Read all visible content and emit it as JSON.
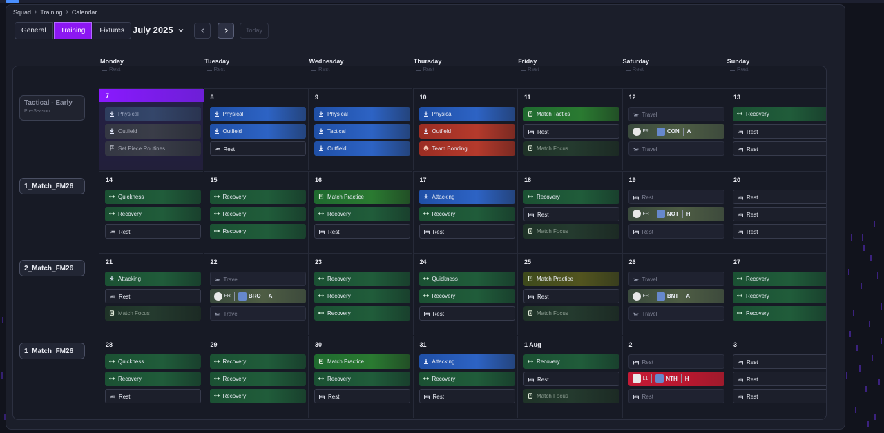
{
  "breadcrumb": [
    "Squad",
    "Training",
    "Calendar"
  ],
  "tabs": [
    "General",
    "Training",
    "Fixtures"
  ],
  "active_tab": "Training",
  "month_label": "July 2025",
  "today_label": "Today",
  "days": [
    "Monday",
    "Tuesday",
    "Wednesday",
    "Thursday",
    "Friday",
    "Saturday",
    "Sunday"
  ],
  "ghost_label": "Rest",
  "weeks": [
    {
      "label": "Tactical - Early",
      "sublabel": "Pre-Season",
      "cells": [
        {
          "day": "7",
          "highlight": true,
          "events": [
            {
              "type": "dimblue",
              "icon": "dumbbell-icon",
              "text": "Physical"
            },
            {
              "type": "grey",
              "icon": "dumbbell-icon",
              "text": "Outfield"
            },
            {
              "type": "grey",
              "icon": "set-piece-icon",
              "text": "Set Piece Routines"
            }
          ]
        },
        {
          "day": "8",
          "events": [
            {
              "type": "blue",
              "icon": "dumbbell-icon",
              "text": "Physical"
            },
            {
              "type": "blue",
              "icon": "dumbbell-icon",
              "text": "Outfield"
            },
            {
              "type": "rest",
              "icon": "bed-icon",
              "text": "Rest"
            }
          ]
        },
        {
          "day": "9",
          "events": [
            {
              "type": "blue",
              "icon": "dumbbell-icon",
              "text": "Physical"
            },
            {
              "type": "blue",
              "icon": "dumbbell-icon",
              "text": "Tactical"
            },
            {
              "type": "blue",
              "icon": "dumbbell-icon",
              "text": "Outfield"
            }
          ]
        },
        {
          "day": "10",
          "events": [
            {
              "type": "blue",
              "icon": "dumbbell-icon",
              "text": "Physical"
            },
            {
              "type": "red",
              "icon": "dumbbell-icon",
              "text": "Outfield"
            },
            {
              "type": "red",
              "icon": "smile-icon",
              "text": "Team Bonding"
            }
          ]
        },
        {
          "day": "11",
          "events": [
            {
              "type": "green-b",
              "icon": "clipboard-icon",
              "text": "Match Tactics"
            },
            {
              "type": "rest",
              "icon": "bed-icon",
              "text": "Rest"
            },
            {
              "type": "dimgreen",
              "icon": "clipboard-icon",
              "text": "Match Focus"
            }
          ]
        },
        {
          "day": "12",
          "events": [
            {
              "type": "dim",
              "icon": "plane-icon",
              "text": "Travel"
            },
            {
              "type": "match",
              "comp": "FR",
              "team": "CON",
              "venue": "A"
            },
            {
              "type": "dim",
              "icon": "plane-icon",
              "text": "Travel"
            }
          ]
        },
        {
          "day": "13",
          "events": [
            {
              "type": "green",
              "icon": "recovery-icon",
              "text": "Recovery"
            },
            {
              "type": "rest",
              "icon": "bed-icon",
              "text": "Rest"
            },
            {
              "type": "rest",
              "icon": "bed-icon",
              "text": "Rest"
            }
          ]
        }
      ]
    },
    {
      "label": "1_Match_FM26",
      "cells": [
        {
          "day": "14",
          "events": [
            {
              "type": "green",
              "icon": "recovery-icon",
              "text": "Quickness"
            },
            {
              "type": "green",
              "icon": "recovery-icon",
              "text": "Recovery"
            },
            {
              "type": "rest",
              "icon": "bed-icon",
              "text": "Rest"
            }
          ]
        },
        {
          "day": "15",
          "events": [
            {
              "type": "green",
              "icon": "recovery-icon",
              "text": "Recovery"
            },
            {
              "type": "green",
              "icon": "recovery-icon",
              "text": "Recovery"
            },
            {
              "type": "green",
              "icon": "recovery-icon",
              "text": "Recovery"
            }
          ]
        },
        {
          "day": "16",
          "events": [
            {
              "type": "green-b",
              "icon": "clipboard-icon",
              "text": "Match Practice"
            },
            {
              "type": "green",
              "icon": "recovery-icon",
              "text": "Recovery"
            },
            {
              "type": "rest",
              "icon": "bed-icon",
              "text": "Rest"
            }
          ]
        },
        {
          "day": "17",
          "events": [
            {
              "type": "blue",
              "icon": "dumbbell-icon",
              "text": "Attacking"
            },
            {
              "type": "green",
              "icon": "recovery-icon",
              "text": "Recovery"
            },
            {
              "type": "rest",
              "icon": "bed-icon",
              "text": "Rest"
            }
          ]
        },
        {
          "day": "18",
          "events": [
            {
              "type": "green",
              "icon": "recovery-icon",
              "text": "Recovery"
            },
            {
              "type": "rest",
              "icon": "bed-icon",
              "text": "Rest"
            },
            {
              "type": "dimgreen",
              "icon": "clipboard-icon",
              "text": "Match Focus"
            }
          ]
        },
        {
          "day": "19",
          "events": [
            {
              "type": "dim",
              "icon": "bed-icon",
              "text": "Rest"
            },
            {
              "type": "match",
              "comp": "FR",
              "team": "NOT",
              "venue": "H"
            },
            {
              "type": "dim",
              "icon": "bed-icon",
              "text": "Rest"
            }
          ]
        },
        {
          "day": "20",
          "events": [
            {
              "type": "rest",
              "icon": "bed-icon",
              "text": "Rest"
            },
            {
              "type": "rest",
              "icon": "bed-icon",
              "text": "Rest"
            },
            {
              "type": "rest",
              "icon": "bed-icon",
              "text": "Rest"
            }
          ]
        }
      ]
    },
    {
      "label": "2_Match_FM26",
      "cells": [
        {
          "day": "21",
          "events": [
            {
              "type": "green",
              "icon": "dumbbell-icon",
              "text": "Attacking"
            },
            {
              "type": "rest",
              "icon": "bed-icon",
              "text": "Rest"
            },
            {
              "type": "dimgreen",
              "icon": "clipboard-icon",
              "text": "Match Focus"
            }
          ]
        },
        {
          "day": "22",
          "events": [
            {
              "type": "dim",
              "icon": "plane-icon",
              "text": "Travel"
            },
            {
              "type": "match",
              "comp": "FR",
              "team": "BRO",
              "venue": "A"
            },
            {
              "type": "dim",
              "icon": "plane-icon",
              "text": "Travel"
            }
          ]
        },
        {
          "day": "23",
          "events": [
            {
              "type": "green",
              "icon": "recovery-icon",
              "text": "Recovery"
            },
            {
              "type": "green",
              "icon": "recovery-icon",
              "text": "Recovery"
            },
            {
              "type": "green",
              "icon": "recovery-icon",
              "text": "Recovery"
            }
          ]
        },
        {
          "day": "24",
          "events": [
            {
              "type": "green",
              "icon": "recovery-icon",
              "text": "Quickness"
            },
            {
              "type": "green",
              "icon": "recovery-icon",
              "text": "Recovery"
            },
            {
              "type": "rest",
              "icon": "bed-icon",
              "text": "Rest"
            }
          ]
        },
        {
          "day": "25",
          "events": [
            {
              "type": "olive",
              "icon": "clipboard-icon",
              "text": "Match Practice"
            },
            {
              "type": "rest",
              "icon": "bed-icon",
              "text": "Rest"
            },
            {
              "type": "dimgreen",
              "icon": "clipboard-icon",
              "text": "Match Focus"
            }
          ]
        },
        {
          "day": "26",
          "events": [
            {
              "type": "dim",
              "icon": "plane-icon",
              "text": "Travel"
            },
            {
              "type": "match",
              "comp": "FR",
              "team": "BNT",
              "venue": "A"
            },
            {
              "type": "dim",
              "icon": "plane-icon",
              "text": "Travel"
            }
          ]
        },
        {
          "day": "27",
          "events": [
            {
              "type": "green",
              "icon": "recovery-icon",
              "text": "Recovery"
            },
            {
              "type": "green",
              "icon": "recovery-icon",
              "text": "Recovery"
            },
            {
              "type": "green",
              "icon": "recovery-icon",
              "text": "Recovery"
            }
          ]
        }
      ]
    },
    {
      "label": "1_Match_FM26",
      "cells": [
        {
          "day": "28",
          "events": [
            {
              "type": "green",
              "icon": "recovery-icon",
              "text": "Quickness"
            },
            {
              "type": "green",
              "icon": "recovery-icon",
              "text": "Recovery"
            },
            {
              "type": "rest",
              "icon": "bed-icon",
              "text": "Rest"
            }
          ]
        },
        {
          "day": "29",
          "events": [
            {
              "type": "green",
              "icon": "recovery-icon",
              "text": "Recovery"
            },
            {
              "type": "green",
              "icon": "recovery-icon",
              "text": "Recovery"
            },
            {
              "type": "green",
              "icon": "recovery-icon",
              "text": "Recovery"
            }
          ]
        },
        {
          "day": "30",
          "events": [
            {
              "type": "green-b",
              "icon": "clipboard-icon",
              "text": "Match Practice"
            },
            {
              "type": "green",
              "icon": "recovery-icon",
              "text": "Recovery"
            },
            {
              "type": "rest",
              "icon": "bed-icon",
              "text": "Rest"
            }
          ]
        },
        {
          "day": "31",
          "events": [
            {
              "type": "blue",
              "icon": "dumbbell-icon",
              "text": "Attacking"
            },
            {
              "type": "green",
              "icon": "recovery-icon",
              "text": "Recovery"
            },
            {
              "type": "rest",
              "icon": "bed-icon",
              "text": "Rest"
            }
          ]
        },
        {
          "day": "1 Aug",
          "events": [
            {
              "type": "green",
              "icon": "recovery-icon",
              "text": "Recovery"
            },
            {
              "type": "rest",
              "icon": "bed-icon",
              "text": "Rest"
            },
            {
              "type": "dimgreen",
              "icon": "clipboard-icon",
              "text": "Match Focus"
            }
          ]
        },
        {
          "day": "2",
          "events": [
            {
              "type": "dim",
              "icon": "bed-icon",
              "text": "Rest"
            },
            {
              "type": "match",
              "red": true,
              "comp": "L1",
              "team": "NTH",
              "venue": "H"
            },
            {
              "type": "dim",
              "icon": "bed-icon",
              "text": "Rest"
            }
          ]
        },
        {
          "day": "3",
          "events": [
            {
              "type": "rest",
              "icon": "bed-icon",
              "text": "Rest"
            },
            {
              "type": "rest",
              "icon": "bed-icon",
              "text": "Rest"
            },
            {
              "type": "rest",
              "icon": "bed-icon",
              "text": "Rest"
            }
          ]
        }
      ]
    }
  ],
  "colors": {
    "accent": "#8c17f2",
    "background": "#11131c",
    "panel": "#1b1e2a"
  }
}
